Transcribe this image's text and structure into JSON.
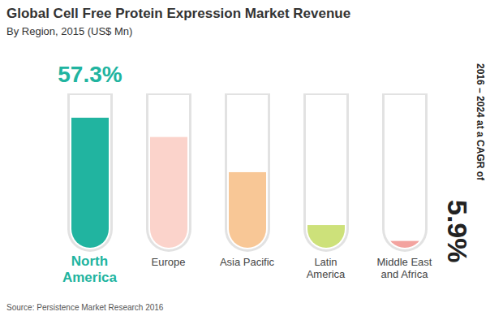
{
  "chart_data": {
    "type": "bar",
    "title": "Global Cell Free Protein Expression Market Revenue",
    "subtitle": "By Region, 2015 (US$ Mn)",
    "categories": [
      "North America",
      "Europe",
      "Asia Pacific",
      "Latin America",
      "Middle East and Africa"
    ],
    "values": [
      57.3,
      48.8,
      33.3,
      10.0,
      3.0
    ],
    "value_labels": [
      "57.3%",
      null,
      null,
      null,
      null
    ],
    "colors": [
      "#21b4a0",
      "#fbd3cb",
      "#f8c796",
      "#cde17a",
      "#f3a39f"
    ],
    "ylim": [
      0,
      68
    ],
    "tick_labels": false,
    "annotations": [
      "2016 – 2024 at a CAGR of",
      "5.9%"
    ],
    "source": "Source: Persistence Market Research 2016"
  }
}
